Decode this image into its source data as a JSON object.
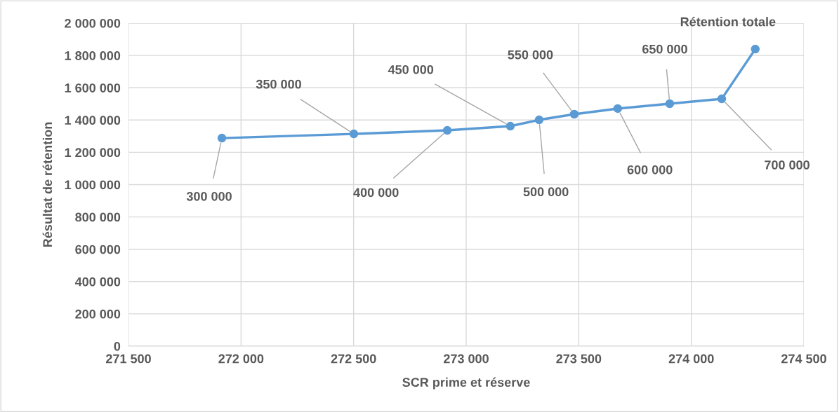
{
  "chart_data": {
    "type": "line",
    "xlabel": "SCR prime et réserve",
    "ylabel": "Résultat de rétention",
    "x": [
      271915,
      272501,
      272916,
      273196,
      273324,
      273480,
      273673,
      273904,
      274135,
      274284
    ],
    "series": [
      {
        "color": "#5b9bd5",
        "values": [
          1288000,
          1314000,
          1336000,
          1362000,
          1401000,
          1436000,
          1471000,
          1501000,
          1531000,
          1839000
        ]
      }
    ],
    "xlim": [
      271500,
      274500
    ],
    "xticks": [
      {
        "value": 271500,
        "label": "271 500"
      },
      {
        "value": 272000,
        "label": "272 000"
      },
      {
        "value": 272500,
        "label": "272 500"
      },
      {
        "value": 273000,
        "label": "273 000"
      },
      {
        "value": 273500,
        "label": "273 500"
      },
      {
        "value": 274000,
        "label": "274 000"
      },
      {
        "value": 274500,
        "label": "274 500"
      }
    ],
    "ylim": [
      0,
      2000000
    ],
    "yticks": [
      0,
      {
        "value": 200000,
        "label": "200 000"
      },
      {
        "value": 400000,
        "label": "400 000"
      },
      {
        "value": 600000,
        "label": "600 000"
      },
      {
        "value": 800000,
        "label": "800 000"
      },
      {
        "value": 1000000,
        "label": "1 000 000"
      },
      {
        "value": 1200000,
        "label": "1 200 000"
      },
      {
        "value": 1400000,
        "label": "1 400 000"
      },
      {
        "value": 1600000,
        "label": "1 600 000"
      },
      {
        "value": 1800000,
        "label": "1 800 000"
      },
      {
        "value": 2000000,
        "label": "2 000 000"
      }
    ],
    "grid": true,
    "marker": "circle",
    "line_style": "solid",
    "annotations": [
      {
        "text": "300 000",
        "x": 271915,
        "y": 1288000
      },
      {
        "text": "350 000",
        "x": 272501,
        "y": 1314000
      },
      {
        "text": "400 000",
        "x": 272916,
        "y": 1336000
      },
      {
        "text": "450 000",
        "x": 273196,
        "y": 1362000
      },
      {
        "text": "500 000",
        "x": 273324,
        "y": 1401000
      },
      {
        "text": "550 000",
        "x": 273480,
        "y": 1436000
      },
      {
        "text": "600 000",
        "x": 273673,
        "y": 1471000
      },
      {
        "text": "650 000",
        "x": 273904,
        "y": 1501000
      },
      {
        "text": "700 000",
        "x": 274135,
        "y": 1531000
      },
      {
        "text": "Rétention totale",
        "x": 274284,
        "y": 1839000
      }
    ]
  }
}
